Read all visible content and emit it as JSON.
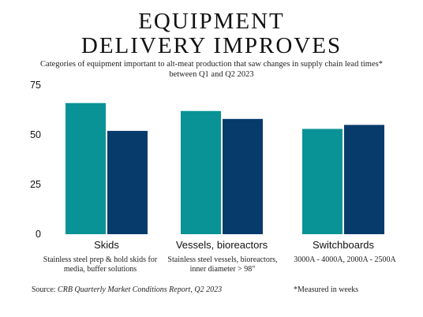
{
  "header": {
    "title_line1": "EQUIPMENT",
    "title_line2": "DELIVERY IMPROVES",
    "subtitle": "Categories of equipment important to alt-meat production that saw changes in supply chain lead times* between Q1 and Q2 2023"
  },
  "footer": {
    "source_label": "Source:",
    "source_text": "CRB Quarterly Market Conditions Report, Q2 2023",
    "note": "*Measured in weeks"
  },
  "descriptions": [
    "Stainless steel prep & hold skids for media, buffer solutions",
    "Stainless steel vessels, bioreactors, inner diameter > 98\"",
    "3000A - 4000A, 2000A - 2500A"
  ],
  "colors": {
    "q1": "#0a9396",
    "q2": "#073b6b"
  },
  "chart_data": {
    "type": "bar",
    "categories": [
      "Skids",
      "Vessels, bioreactors",
      "Switchboards"
    ],
    "series": [
      {
        "values": [
          66,
          62,
          53
        ]
      },
      {
        "values": [
          52,
          58,
          55
        ]
      }
    ],
    "ylim": [
      0,
      75
    ],
    "yticks": [
      0,
      25,
      50,
      75
    ],
    "grid": false,
    "legend": "none"
  }
}
